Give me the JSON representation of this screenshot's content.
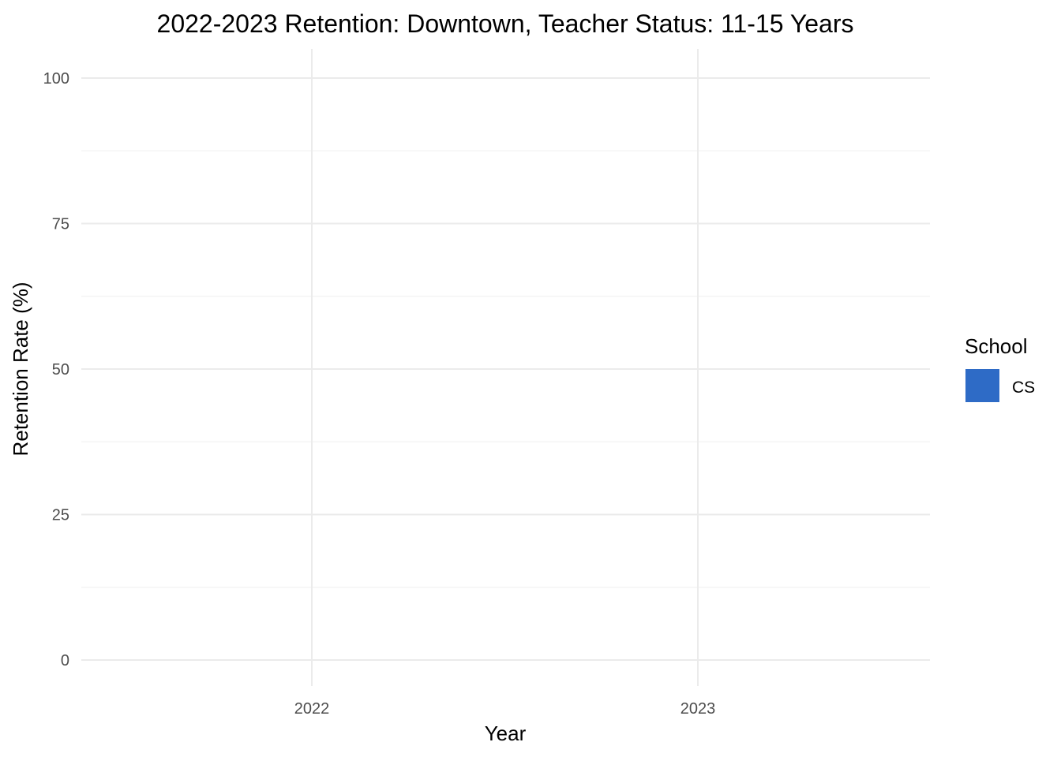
{
  "chart_data": {
    "type": "bar",
    "title": "2022-2023 Retention: Downtown, Teacher Status: 11-15 Years",
    "xlabel": "Year",
    "ylabel": "Retention Rate (%)",
    "categories": [
      "2022",
      "2023"
    ],
    "series": [
      {
        "name": "CS",
        "color": "#2e6bc6",
        "values": [
          null,
          null
        ]
      }
    ],
    "y_ticks": [
      "0",
      "25",
      "50",
      "75",
      "100"
    ],
    "ylim": [
      0,
      100
    ],
    "grid": true,
    "legend": {
      "title": "School",
      "position": "right",
      "entries": [
        {
          "label": "CS",
          "color": "#2e6bc6"
        }
      ]
    }
  }
}
